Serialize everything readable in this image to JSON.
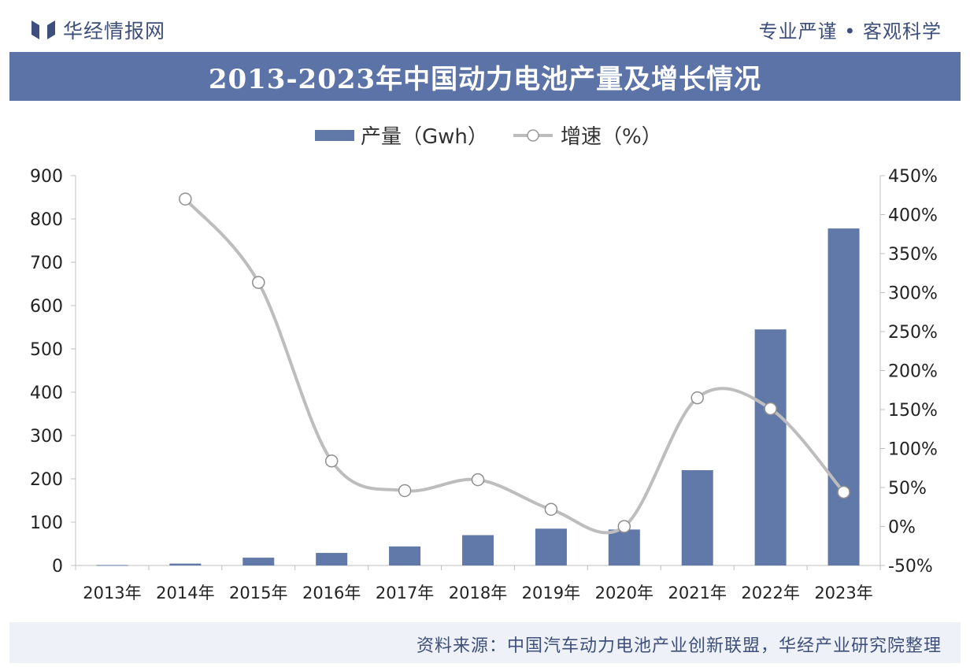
{
  "header": {
    "brand": "华经情报网",
    "slogan": "专业严谨 • 客观科学",
    "logo_icon": "bookmark-bars-icon"
  },
  "title": "2013-2023年中国动力电池产量及增长情况",
  "footer": {
    "source": "资料来源：中国汽车动力电池产业创新联盟，华经产业研究院整理"
  },
  "colors": {
    "accent": "#5c73a8",
    "bar": "#6179a8",
    "line": "#bdbdbd",
    "brand_text": "#3d4f7a"
  },
  "chart_data": {
    "type": "bar",
    "title": "2013-2023年中国动力电池产量及增长情况",
    "categories": [
      "2013年",
      "2014年",
      "2015年",
      "2016年",
      "2017年",
      "2018年",
      "2019年",
      "2020年",
      "2021年",
      "2022年",
      "2023年"
    ],
    "series": [
      {
        "name": "产量（Gwh）",
        "type": "bar",
        "axis": "left",
        "values": [
          1.1,
          4.3,
          18,
          29,
          44,
          70,
          85,
          83,
          220,
          545,
          778
        ]
      },
      {
        "name": "增速（%）",
        "type": "line",
        "axis": "right",
        "smooth": true,
        "values": [
          null,
          420,
          313,
          84,
          46,
          60,
          22,
          0,
          165,
          151,
          44
        ]
      }
    ],
    "y_left": {
      "min": 0,
      "max": 900,
      "ticks": [
        0,
        100,
        200,
        300,
        400,
        500,
        600,
        700,
        800,
        900
      ]
    },
    "y_right": {
      "min": -50,
      "max": 450,
      "ticks": [
        -50,
        0,
        50,
        100,
        150,
        200,
        250,
        300,
        350,
        400,
        450
      ],
      "tick_labels": [
        "-50%",
        "0%",
        "50%",
        "100%",
        "150%",
        "200%",
        "250%",
        "300%",
        "350%",
        "400%",
        "450%"
      ]
    },
    "legend": {
      "position": "top-center",
      "items": [
        "产量（Gwh）",
        "增速（%）"
      ]
    },
    "grid": false
  }
}
